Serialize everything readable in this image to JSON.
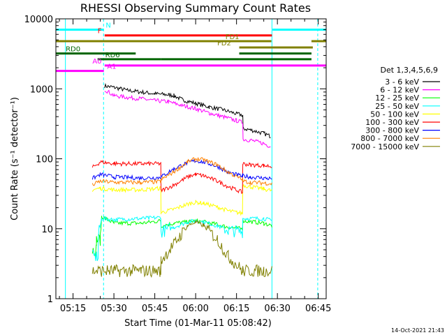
{
  "chart_data": {
    "type": "line",
    "title": "RHESSI Observing Summary Count Rates",
    "xlabel": "Start Time (01-Mar-11 05:08:42)",
    "ylabel": "Count Rate (s⁻¹ detector⁻¹)",
    "yscale": "log",
    "xlim": [
      308.7,
      407.9
    ],
    "ylim": [
      1,
      10000
    ],
    "x_ticks": [
      315,
      330,
      345,
      360,
      375,
      390,
      405
    ],
    "x_tick_labels": [
      "05:15",
      "05:30",
      "05:45",
      "06:00",
      "06:15",
      "06:30",
      "06:45"
    ],
    "y_ticks": [
      1,
      10,
      100,
      1000,
      10000
    ],
    "y_tick_labels": [
      "1",
      "10",
      "100",
      "1000",
      "10000"
    ],
    "legend_title": "Det 1,3,4,5,6,9",
    "legend_position": "right",
    "series": [
      {
        "name": "3 - 6 keV",
        "color": "#000000",
        "points": [
          [
            313.1,
            null
          ],
          [
            315.0,
            null
          ],
          [
            320.0,
            null
          ],
          [
            321.0,
            null
          ],
          [
            326.5,
            null
          ],
          [
            326.6,
            1100
          ],
          [
            330,
            1050
          ],
          [
            335,
            950
          ],
          [
            340,
            900
          ],
          [
            345,
            850
          ],
          [
            350,
            820
          ],
          [
            352,
            800
          ],
          [
            355,
            700
          ],
          [
            360,
            620
          ],
          [
            365,
            550
          ],
          [
            370,
            500
          ],
          [
            375,
            440
          ],
          [
            377.3,
            420
          ],
          [
            377.4,
            270
          ],
          [
            380,
            260
          ],
          [
            385,
            230
          ],
          [
            387.5,
            210
          ],
          [
            387.6,
            null
          ]
        ]
      },
      {
        "name": "6 - 12 keV",
        "color": "#ff00ff",
        "points": [
          [
            326.5,
            null
          ],
          [
            326.6,
            980
          ],
          [
            330,
            800
          ],
          [
            335,
            750
          ],
          [
            340,
            720
          ],
          [
            345,
            680
          ],
          [
            350,
            650
          ],
          [
            355,
            580
          ],
          [
            360,
            520
          ],
          [
            365,
            450
          ],
          [
            370,
            400
          ],
          [
            375,
            350
          ],
          [
            377.3,
            330
          ],
          [
            377.4,
            190
          ],
          [
            380,
            185
          ],
          [
            385,
            165
          ],
          [
            387.5,
            150
          ],
          [
            387.6,
            null
          ]
        ]
      },
      {
        "name": "12 - 25 keV",
        "color": "#00ff00",
        "points": [
          [
            322.0,
            null
          ],
          [
            322.1,
            5
          ],
          [
            323.5,
            5
          ],
          [
            323.6,
            7
          ],
          [
            325.0,
            7
          ],
          [
            325.5,
            15
          ],
          [
            330,
            12
          ],
          [
            340,
            12
          ],
          [
            347.2,
            13
          ],
          [
            347.3,
            11
          ],
          [
            352,
            12
          ],
          [
            357,
            12.5
          ],
          [
            360,
            13
          ],
          [
            363,
            12.5
          ],
          [
            368,
            11.5
          ],
          [
            372,
            10.5
          ],
          [
            377.2,
            10
          ],
          [
            377.3,
            13
          ],
          [
            385,
            12
          ],
          [
            388.0,
            11
          ],
          [
            388.1,
            null
          ],
          [
            393.0,
            null
          ]
        ]
      },
      {
        "name": "25 - 50 keV",
        "color": "#00ffff",
        "points": [
          [
            322.0,
            null
          ],
          [
            322.1,
            4
          ],
          [
            324.2,
            4
          ],
          [
            324.3,
            8
          ],
          [
            325.5,
            14
          ],
          [
            330,
            13.5
          ],
          [
            340,
            14
          ],
          [
            347.2,
            14.5
          ],
          [
            347.3,
            9
          ],
          [
            352,
            10.5
          ],
          [
            357,
            12.5
          ],
          [
            360,
            13
          ],
          [
            363,
            12.5
          ],
          [
            368,
            11
          ],
          [
            372,
            9.5
          ],
          [
            377.2,
            9
          ],
          [
            377.3,
            14
          ],
          [
            385,
            14
          ],
          [
            388.0,
            13
          ],
          [
            388.1,
            null
          ],
          [
            393.0,
            null
          ]
        ]
      },
      {
        "name": "50 - 100 keV",
        "color": "#ffff00",
        "points": [
          [
            322.0,
            null
          ],
          [
            322.1,
            36
          ],
          [
            325,
            38
          ],
          [
            330,
            36
          ],
          [
            340,
            36
          ],
          [
            347.2,
            38
          ],
          [
            347.3,
            17
          ],
          [
            352,
            19
          ],
          [
            357,
            22.5
          ],
          [
            360,
            24
          ],
          [
            363,
            23
          ],
          [
            368,
            20.5
          ],
          [
            372,
            18
          ],
          [
            377.2,
            16.5
          ],
          [
            377.3,
            42
          ],
          [
            380,
            40
          ],
          [
            385,
            37
          ],
          [
            388.0,
            35
          ],
          [
            388.1,
            null
          ]
        ]
      },
      {
        "name": "100 - 300 keV",
        "color": "#ff0000",
        "points": [
          [
            322.0,
            null
          ],
          [
            322.1,
            75
          ],
          [
            325,
            90
          ],
          [
            330,
            85
          ],
          [
            340,
            85
          ],
          [
            347.2,
            85
          ],
          [
            347.3,
            35
          ],
          [
            352,
            42
          ],
          [
            357,
            55
          ],
          [
            360,
            60
          ],
          [
            363,
            57
          ],
          [
            368,
            48
          ],
          [
            372,
            40
          ],
          [
            377.2,
            33
          ],
          [
            377.3,
            85
          ],
          [
            380,
            82
          ],
          [
            385,
            80
          ],
          [
            388.0,
            78
          ],
          [
            388.1,
            null
          ]
        ]
      },
      {
        "name": "300 - 800 keV",
        "color": "#0000ff",
        "points": [
          [
            322.0,
            null
          ],
          [
            322.1,
            52
          ],
          [
            325,
            60
          ],
          [
            330,
            55
          ],
          [
            340,
            53
          ],
          [
            347.2,
            54
          ],
          [
            347.3,
            55
          ],
          [
            352,
            72
          ],
          [
            357,
            88
          ],
          [
            360,
            94
          ],
          [
            363,
            90
          ],
          [
            368,
            78
          ],
          [
            372,
            64
          ],
          [
            377.2,
            56
          ],
          [
            377.3,
            57
          ],
          [
            380,
            55
          ],
          [
            385,
            53
          ],
          [
            388.0,
            52
          ],
          [
            388.1,
            null
          ]
        ]
      },
      {
        "name": "800 - 7000 keV",
        "color": "#ff8000",
        "points": [
          [
            322.0,
            null
          ],
          [
            322.1,
            42
          ],
          [
            325,
            48
          ],
          [
            330,
            46
          ],
          [
            340,
            46
          ],
          [
            347.2,
            47
          ],
          [
            347.3,
            50
          ],
          [
            352,
            65
          ],
          [
            357,
            90
          ],
          [
            360,
            100
          ],
          [
            363,
            96
          ],
          [
            368,
            82
          ],
          [
            372,
            64
          ],
          [
            377.2,
            50
          ],
          [
            377.3,
            48
          ],
          [
            380,
            46
          ],
          [
            385,
            45
          ],
          [
            388.0,
            44
          ],
          [
            388.1,
            null
          ]
        ]
      },
      {
        "name": "7000 - 15000 keV",
        "color": "#808000",
        "points": [
          [
            322.0,
            null
          ],
          [
            322.1,
            2.5
          ],
          [
            330,
            2.5
          ],
          [
            340,
            2.5
          ],
          [
            347.2,
            2.5
          ],
          [
            347.3,
            3.5
          ],
          [
            352,
            6
          ],
          [
            357,
            11
          ],
          [
            360,
            12.5
          ],
          [
            363,
            11
          ],
          [
            368,
            7
          ],
          [
            372,
            4
          ],
          [
            377.2,
            2.5
          ],
          [
            377.3,
            2.5
          ],
          [
            385,
            2.5
          ],
          [
            388.0,
            2.5
          ],
          [
            388.1,
            null
          ]
        ]
      }
    ],
    "cyan_markers": [
      {
        "x": 312.2,
        "style": "solid"
      },
      {
        "x": 326.2,
        "style": "dashed"
      },
      {
        "x": 388.0,
        "style": "solid"
      },
      {
        "x": 404.8,
        "style": "dashed"
      }
    ],
    "flags": [
      {
        "label": "N",
        "color": "#00ffff",
        "y": 7000,
        "segments": [
          [
            308.7,
            326.3
          ],
          [
            388.2,
            407.9
          ]
        ],
        "label_x": 327.0,
        "label_side": "right"
      },
      {
        "label": "F",
        "color": "#ff0000",
        "y": 5800,
        "segments": [
          [
            326.6,
            388.0
          ]
        ],
        "label_x": 325.5,
        "label_side": "left"
      },
      {
        "label": "FD1",
        "color": "#808000",
        "y": 4800,
        "segments": [
          [
            308.7,
            387.8
          ],
          [
            402.5,
            407.9
          ]
        ],
        "label_x": 376.0,
        "label_side": "left"
      },
      {
        "label": "FD2",
        "color": "#808000",
        "y": 3900,
        "segments": [
          [
            376.0,
            403.0
          ]
        ],
        "label_x": 373.0,
        "label_side": "left"
      },
      {
        "label": "RD0",
        "color": "#006400",
        "y": 3200,
        "segments": [
          [
            308.7,
            338.0
          ],
          [
            376.0,
            402.5
          ]
        ],
        "label_x": 315.0,
        "label_side": "center"
      },
      {
        "label": "RD6",
        "color": "#006400",
        "y": 2650,
        "segments": [
          [
            324.0,
            347.2
          ],
          [
            347.2,
            376.0
          ],
          [
            376.0,
            402.5
          ]
        ],
        "label_x": 329.5,
        "label_side": "center"
      },
      {
        "label": "A0",
        "color": "#ff00ff",
        "y": 2150,
        "segments": [
          [
            326.6,
            407.9
          ]
        ],
        "label_x": 325.5,
        "label_side": "left"
      },
      {
        "label": "A1",
        "color": "#ff00ff",
        "y": 1800,
        "segments": [
          [
            308.7,
            326.3
          ]
        ],
        "label_x": 327.5,
        "label_side": "right"
      }
    ],
    "timestamp": "14-Oct-2021 21:43"
  }
}
